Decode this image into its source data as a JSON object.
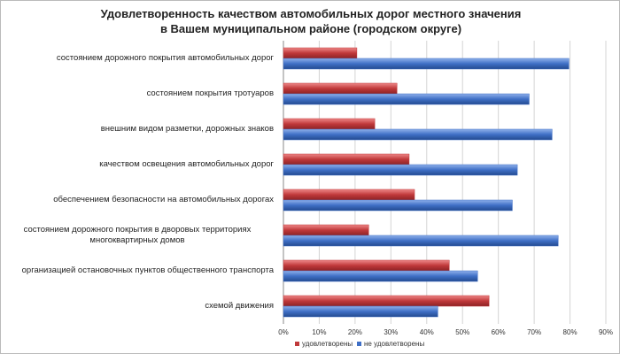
{
  "chart_data": {
    "type": "bar",
    "orientation": "horizontal",
    "title": "Удовлетворенность качеством автомобильных дорог местного значения в Вашем муниципальном районе (городском округе)",
    "categories": [
      "состоянием дорожного покрытия автомобильных дорог",
      "состоянием покрытия тротуаров",
      "внешним видом разметки, дорожных знаков",
      "качеством освещения автомобильных дорог",
      "обеспечением безопасности на автомобильных дорогах",
      "состоянием дорожного покрытия в дворовых территориях многоквартирных домов",
      "организацией остановочных пунктов общественного транспорта",
      "схемой движения"
    ],
    "series": [
      {
        "name": "удовлетворены",
        "color": "#c0393b",
        "values": [
          20.5,
          31.7,
          25.5,
          35.1,
          36.6,
          23.8,
          46.3,
          57.4
        ]
      },
      {
        "name": "не удовлетворены",
        "color": "#3f6fc6",
        "values": [
          79.7,
          68.6,
          75.0,
          65.3,
          63.9,
          76.7,
          54.2,
          43.1
        ]
      }
    ],
    "xlim": [
      0,
      90
    ],
    "xticks": [
      {
        "value": 0,
        "label": "0%"
      },
      {
        "value": 10,
        "label": "10%"
      },
      {
        "value": 20,
        "label": "20%"
      },
      {
        "value": 30,
        "label": "30%"
      },
      {
        "value": 40,
        "label": "40%"
      },
      {
        "value": 50,
        "label": "50%"
      },
      {
        "value": 60,
        "label": "60%"
      },
      {
        "value": 70,
        "label": "70%"
      },
      {
        "value": 80,
        "label": "80%"
      },
      {
        "value": 90,
        "label": "90%"
      }
    ],
    "grid": true,
    "legend": "bottom"
  }
}
